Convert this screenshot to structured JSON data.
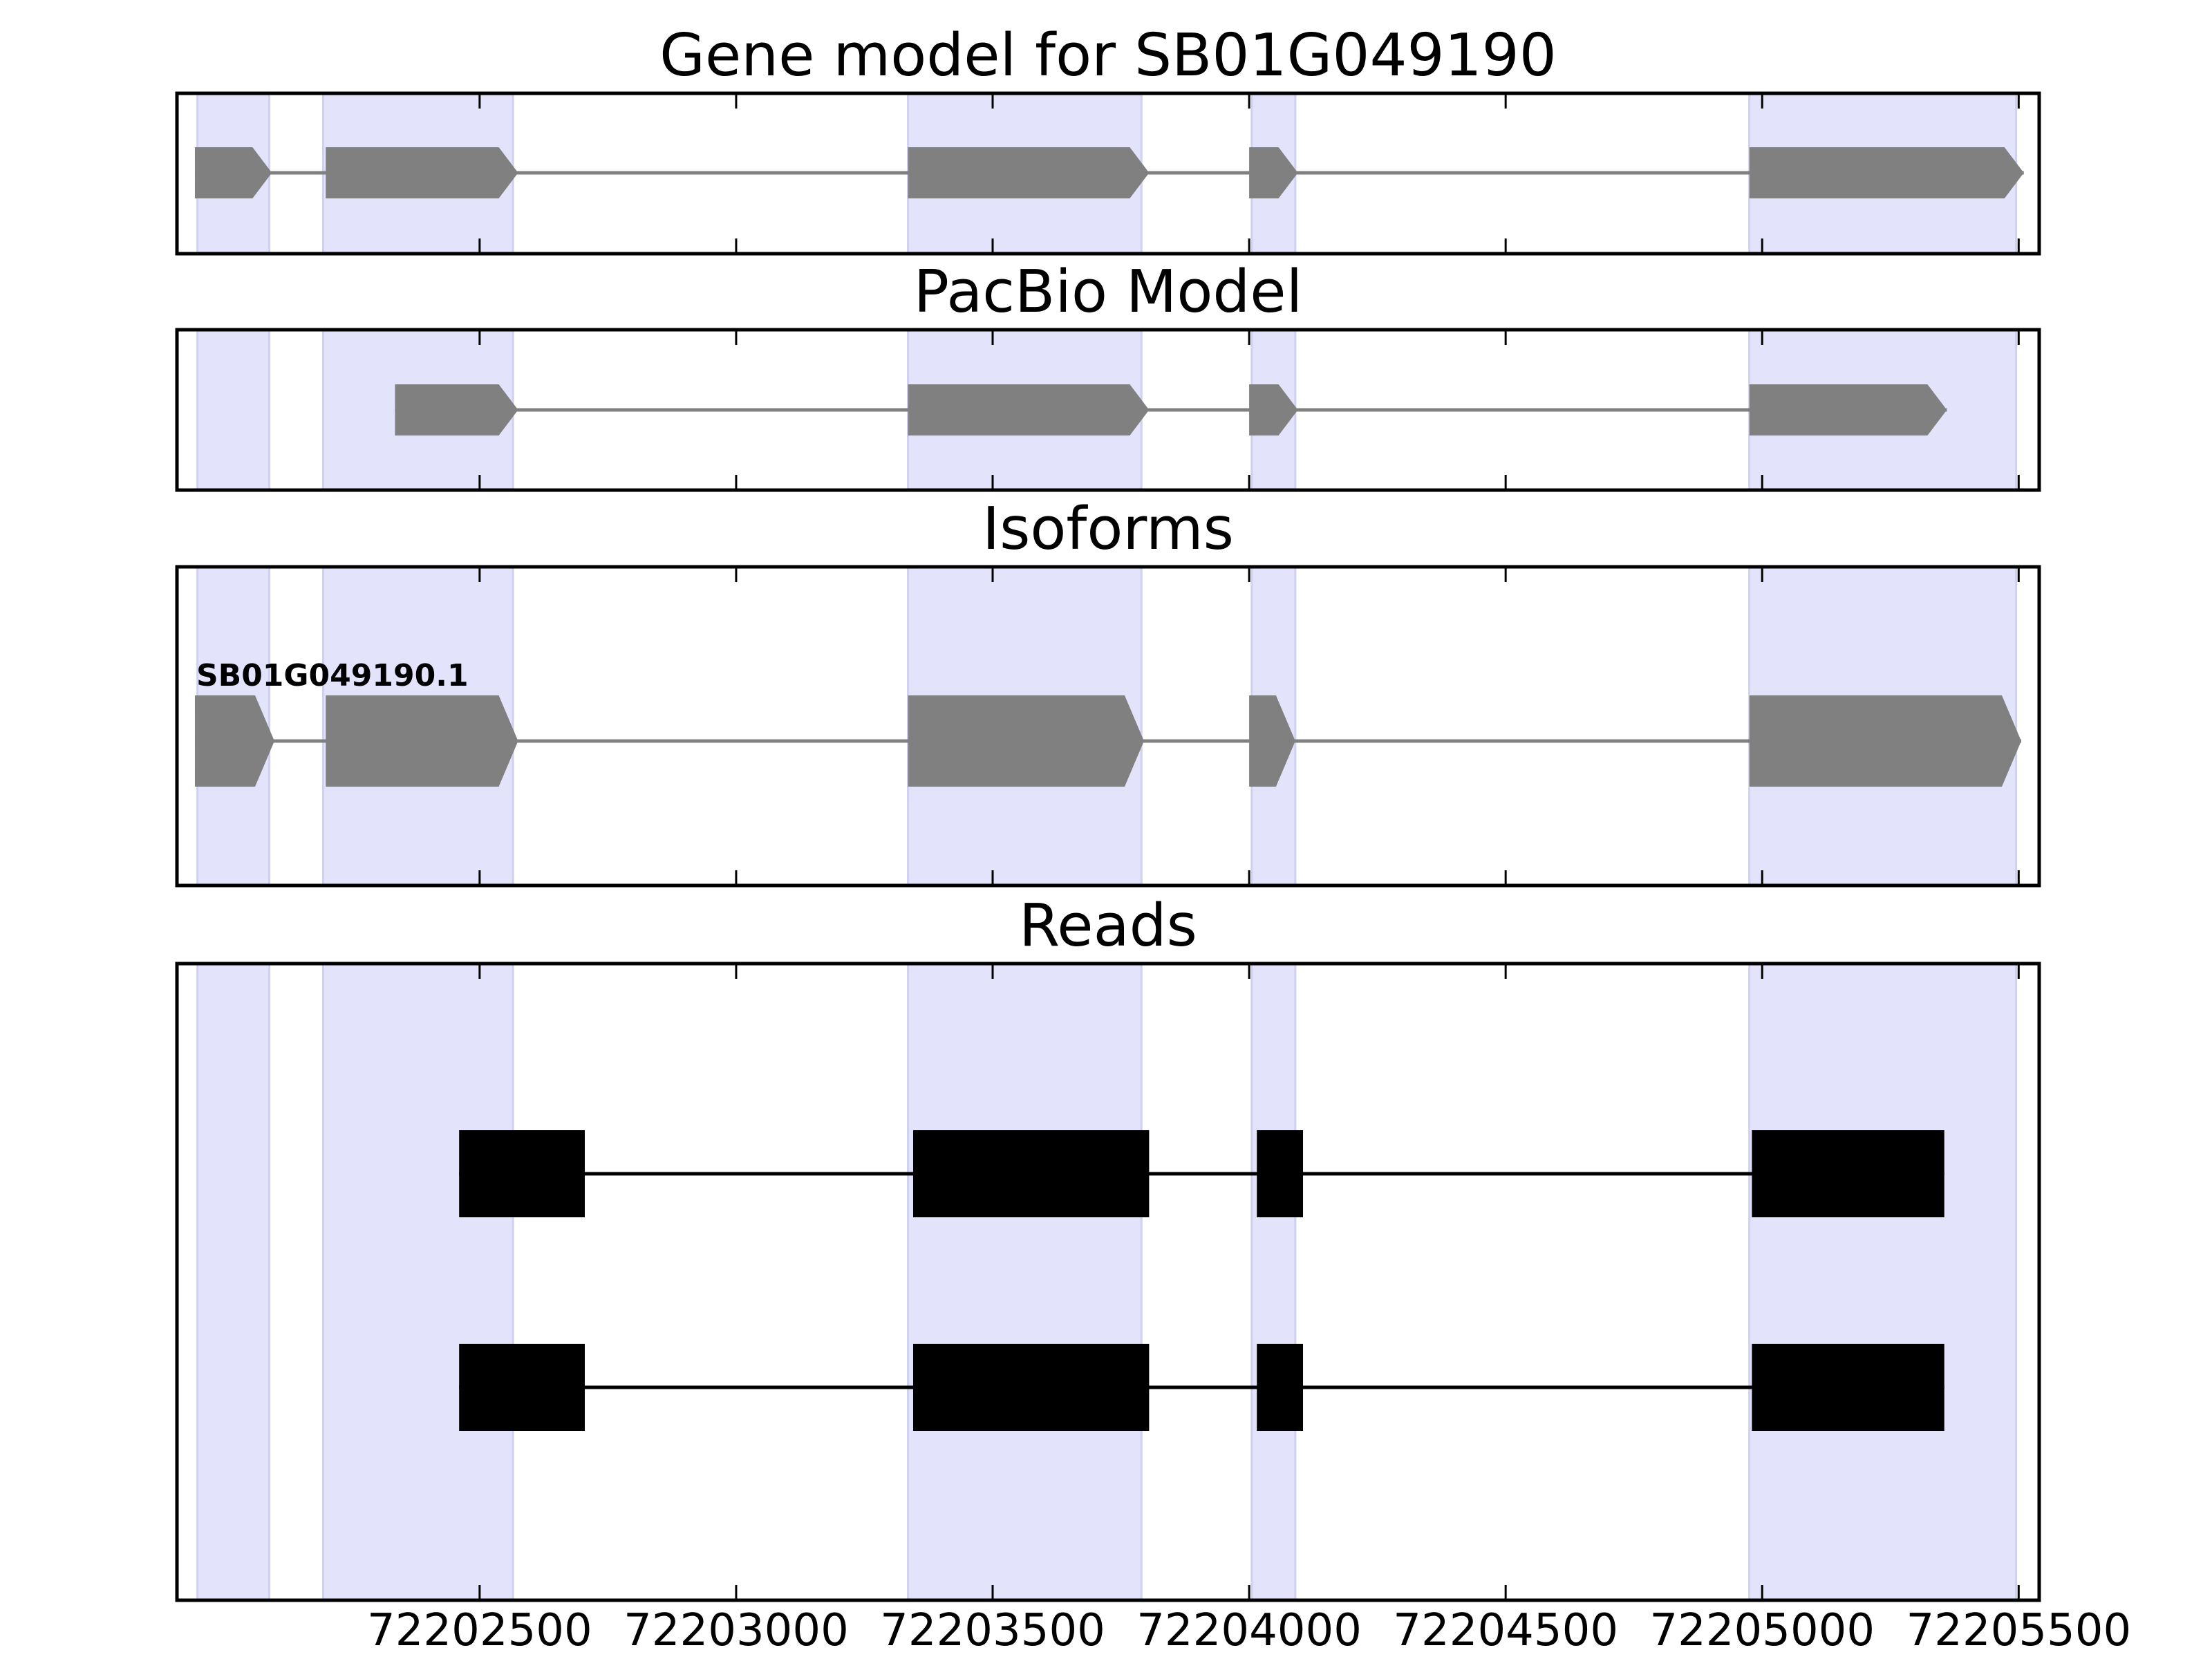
{
  "figure": {
    "title": "Gene model for SB01G049190"
  },
  "colors": {
    "exon_band": "#e3e3fc",
    "exon_band_edge": "#d0d0f0",
    "model_feature": "#808080",
    "read_feature": "#000000",
    "axis": "#000000"
  },
  "chart_data": {
    "type": "gene-structure",
    "xlim": [
      72201910,
      72205540
    ],
    "x_ticks": [
      72202500,
      72203000,
      72203500,
      72204000,
      72204500,
      72205000,
      72205500
    ],
    "x_tick_labels": [
      "72202500",
      "72203000",
      "72203500",
      "72204000",
      "72204500",
      "72205000",
      "72205500"
    ],
    "exon_bands": [
      [
        72201950,
        72202090
      ],
      [
        72202195,
        72202565
      ],
      [
        72203335,
        72203790
      ],
      [
        72204005,
        72204090
      ],
      [
        72204975,
        72205495
      ]
    ],
    "panels": [
      {
        "id": "gene-model",
        "title": "Gene model for SB01G049190",
        "style": "arrow",
        "tracks": [
          {
            "label": "",
            "exons": [
              [
                72201945,
                72202095
              ],
              [
                72202200,
                72202575
              ],
              [
                72203335,
                72203805
              ],
              [
                72204000,
                72204095
              ],
              [
                72204975,
                72205510
              ]
            ]
          }
        ]
      },
      {
        "id": "pacbio-model",
        "title": "PacBio Model",
        "style": "arrow",
        "tracks": [
          {
            "label": "",
            "exons": [
              [
                72202335,
                72202575
              ],
              [
                72203335,
                72203805
              ],
              [
                72204000,
                72204095
              ],
              [
                72204975,
                72205360
              ]
            ]
          }
        ]
      },
      {
        "id": "isoforms",
        "title": "Isoforms",
        "style": "arrow",
        "tracks": [
          {
            "label": "SB01G049190.1",
            "exons": [
              [
                72201945,
                72202100
              ],
              [
                72202200,
                72202575
              ],
              [
                72203335,
                72203795
              ],
              [
                72204000,
                72204090
              ],
              [
                72204975,
                72205505
              ]
            ]
          }
        ]
      },
      {
        "id": "reads",
        "title": "Reads",
        "style": "block",
        "tracks": [
          {
            "label": "",
            "exons": [
              [
                72202460,
                72202705
              ],
              [
                72203345,
                72203805
              ],
              [
                72204015,
                72204105
              ],
              [
                72204980,
                72205355
              ]
            ]
          },
          {
            "label": "",
            "exons": [
              [
                72202460,
                72202705
              ],
              [
                72203345,
                72203805
              ],
              [
                72204015,
                72204105
              ],
              [
                72204980,
                72205355
              ]
            ]
          }
        ]
      }
    ]
  }
}
